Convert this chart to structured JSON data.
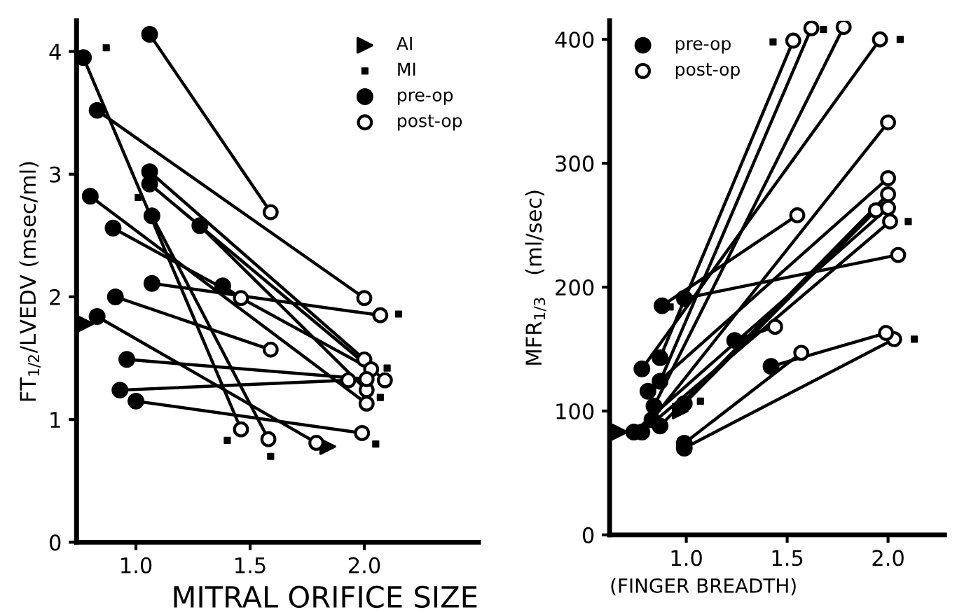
{
  "chart_data": [
    {
      "type": "line",
      "xlabel": "MITRAL ORIFICE SIZE",
      "ylabel": "FT$_{1/2}$/LVEDV (msec/ml)",
      "xlim": [
        0.74,
        2.5
      ],
      "xticks": [
        {
          "value": 1,
          "label": "1.0"
        },
        {
          "value": 1.5,
          "label": "1.5"
        },
        {
          "value": 2,
          "label": "2.0"
        }
      ],
      "ylim": [
        0,
        4.25
      ],
      "yticks": [
        0,
        1,
        2,
        3,
        4
      ],
      "grid": false,
      "legend": "upper right",
      "marker": "none",
      "line_style": "solid",
      "series": [
        {
          "color": "#000000",
          "x": [
            0.77,
            1.46
          ],
          "values": [
            3.95,
            0.92
          ]
        },
        {
          "color": "#000000",
          "x": [
            1.06,
            1.59
          ],
          "values": [
            4.14,
            2.69
          ]
        },
        {
          "color": "#000000",
          "x": [
            0.83,
            2.0
          ],
          "values": [
            3.52,
            1.99
          ]
        },
        {
          "color": "#000000",
          "x": [
            1.06,
            2.0
          ],
          "values": [
            3.02,
            1.49
          ]
        },
        {
          "color": "#000000",
          "x": [
            1.06,
            2.09
          ],
          "values": [
            2.92,
            1.32
          ]
        },
        {
          "color": "#000000",
          "x": [
            1.07,
            1.58
          ],
          "values": [
            2.66,
            0.84
          ]
        },
        {
          "color": "#000000",
          "x": [
            0.8,
            2.01
          ],
          "values": [
            2.82,
            1.13
          ]
        },
        {
          "color": "#000000",
          "x": [
            0.9,
            2.03
          ],
          "values": [
            2.56,
            1.41
          ]
        },
        {
          "color": "#000000",
          "x": [
            1.07,
            2.07
          ],
          "values": [
            2.11,
            1.85
          ]
        },
        {
          "color": "#000000",
          "x": [
            1.28,
            2.01
          ],
          "values": [
            2.58,
            1.24
          ]
        },
        {
          "color": "#000000",
          "x": [
            1.38,
            1.46
          ],
          "values": [
            2.09,
            1.99
          ]
        },
        {
          "color": "#000000",
          "x": [
            0.91,
            1.59
          ],
          "values": [
            2.0,
            1.57
          ]
        },
        {
          "color": "#000000",
          "x": [
            0.83,
            1.79
          ],
          "values": [
            1.84,
            0.81
          ]
        },
        {
          "color": "#000000",
          "x": [
            0.96,
            2.01
          ],
          "values": [
            1.49,
            1.33
          ]
        },
        {
          "color": "#000000",
          "x": [
            0.93,
            1.93
          ],
          "values": [
            1.24,
            1.32
          ]
        },
        {
          "color": "#000000",
          "x": [
            1.0,
            1.99
          ],
          "values": [
            1.15,
            0.89
          ]
        },
        {
          "type": "scatter",
          "name": "AI",
          "color": "#000000",
          "marker": "triangle",
          "x": [
            0.78,
            1.84
          ],
          "values": [
            1.78,
            0.78
          ]
        },
        {
          "type": "scatter",
          "name": "MI",
          "color": "#000000",
          "marker": "square",
          "x": [
            0.87,
            1.01,
            1.4,
            1.59,
            2.15,
            2.1,
            2.07,
            2.05
          ],
          "values": [
            4.03,
            2.81,
            0.83,
            0.7,
            1.86,
            1.42,
            1.18,
            0.8
          ]
        },
        {
          "type": "scatter",
          "name": "pre-op",
          "color": "#000000",
          "marker": "circle",
          "x": [
            0.77,
            1.06,
            0.83,
            1.06,
            1.06,
            1.07,
            0.8,
            0.9,
            1.07,
            1.28,
            1.38,
            0.91,
            0.83,
            0.96,
            0.93,
            1.0
          ],
          "values": [
            3.95,
            4.14,
            3.52,
            3.02,
            2.92,
            2.66,
            2.82,
            2.56,
            2.11,
            2.58,
            2.09,
            2.0,
            1.84,
            1.49,
            1.24,
            1.15
          ]
        },
        {
          "type": "scatter",
          "name": "post-op",
          "color": "#000000",
          "marker": "circle",
          "x": [
            1.46,
            1.59,
            2.0,
            2.0,
            2.09,
            1.58,
            2.01,
            2.03,
            2.07,
            2.01,
            1.46,
            1.59,
            1.79,
            2.01,
            1.93,
            1.99
          ],
          "values": [
            0.92,
            2.69,
            1.99,
            1.49,
            1.32,
            0.84,
            1.13,
            1.41,
            1.85,
            1.24,
            1.99,
            1.57,
            0.81,
            1.33,
            1.32,
            0.89
          ]
        }
      ]
    },
    {
      "type": "line",
      "xlabel": "(FINGER BREADTH)",
      "ylabel": "MFR$_{1/3}$   (ml/sec)",
      "xlim": [
        0.62,
        2.28
      ],
      "xticks": [
        {
          "value": 1,
          "label": "1.0"
        },
        {
          "value": 1.5,
          "label": "1.5"
        },
        {
          "value": 2,
          "label": "2.0"
        }
      ],
      "ylim": [
        0,
        415
      ],
      "yticks": [
        0,
        100,
        200,
        300,
        400
      ],
      "grid": false,
      "legend": "upper left",
      "marker": "none",
      "line_style": "solid",
      "series": [
        {
          "color": "#000000",
          "x": [
            0.88,
            1.55
          ],
          "values": [
            185,
            258
          ]
        },
        {
          "color": "#000000",
          "x": [
            0.99,
            2.05
          ],
          "values": [
            191,
            226
          ]
        },
        {
          "color": "#000000",
          "x": [
            0.78,
            1.96
          ],
          "values": [
            134,
            400
          ]
        },
        {
          "color": "#000000",
          "x": [
            0.87,
            1.53
          ],
          "values": [
            143,
            399
          ]
        },
        {
          "color": "#000000",
          "x": [
            0.87,
            1.62
          ],
          "values": [
            124,
            409
          ]
        },
        {
          "color": "#000000",
          "x": [
            0.81,
            2.0
          ],
          "values": [
            116,
            288
          ]
        },
        {
          "color": "#000000",
          "x": [
            0.84,
            1.78
          ],
          "values": [
            104,
            410
          ]
        },
        {
          "color": "#000000",
          "x": [
            0.99,
            1.94
          ],
          "values": [
            106,
            262
          ]
        },
        {
          "color": "#000000",
          "x": [
            0.83,
            2.0
          ],
          "values": [
            93,
            333
          ]
        },
        {
          "color": "#000000",
          "x": [
            0.87,
            2.0
          ],
          "values": [
            88,
            275
          ]
        },
        {
          "color": "#000000",
          "x": [
            0.74,
            2.0
          ],
          "values": [
            83,
            264
          ]
        },
        {
          "color": "#000000",
          "x": [
            0.78,
            2.01
          ],
          "values": [
            83,
            253
          ]
        },
        {
          "color": "#000000",
          "x": [
            0.99,
            1.57
          ],
          "values": [
            74,
            147
          ]
        },
        {
          "color": "#000000",
          "x": [
            0.99,
            2.03
          ],
          "values": [
            70,
            158
          ]
        },
        {
          "color": "#000000",
          "x": [
            1.24,
            1.44
          ],
          "values": [
            157,
            168
          ]
        },
        {
          "color": "#000000",
          "x": [
            1.42,
            1.99
          ],
          "values": [
            136,
            163
          ]
        },
        {
          "type": "scatter",
          "color": "#000000",
          "marker": "triangle",
          "x": [
            0.67,
            0.97
          ],
          "values": [
            83,
            100
          ]
        },
        {
          "type": "scatter",
          "color": "#000000",
          "marker": "square",
          "x": [
            1.43,
            1.68,
            2.06,
            2.1,
            2.13,
            1.07,
            0.92
          ],
          "values": [
            398,
            408,
            400,
            253,
            158,
            108,
            184
          ]
        },
        {
          "type": "scatter",
          "name": "pre-op",
          "color": "#000000",
          "marker": "circle",
          "x": [
            0.88,
            0.99,
            0.78,
            0.87,
            0.87,
            0.81,
            0.84,
            0.99,
            0.83,
            0.87,
            0.74,
            0.78,
            0.99,
            0.99,
            1.24,
            1.42
          ],
          "values": [
            185,
            191,
            134,
            143,
            124,
            116,
            104,
            106,
            93,
            88,
            83,
            83,
            74,
            70,
            157,
            136
          ]
        },
        {
          "type": "scatter",
          "name": "post-op",
          "color": "#000000",
          "marker": "circle",
          "x": [
            1.55,
            2.05,
            1.96,
            1.53,
            1.62,
            2.0,
            1.78,
            1.94,
            2.0,
            2.0,
            2.0,
            2.01,
            1.57,
            2.03,
            1.44,
            1.99
          ],
          "values": [
            258,
            226,
            400,
            399,
            409,
            288,
            410,
            262,
            333,
            275,
            264,
            253,
            147,
            158,
            168,
            163
          ]
        }
      ]
    }
  ]
}
